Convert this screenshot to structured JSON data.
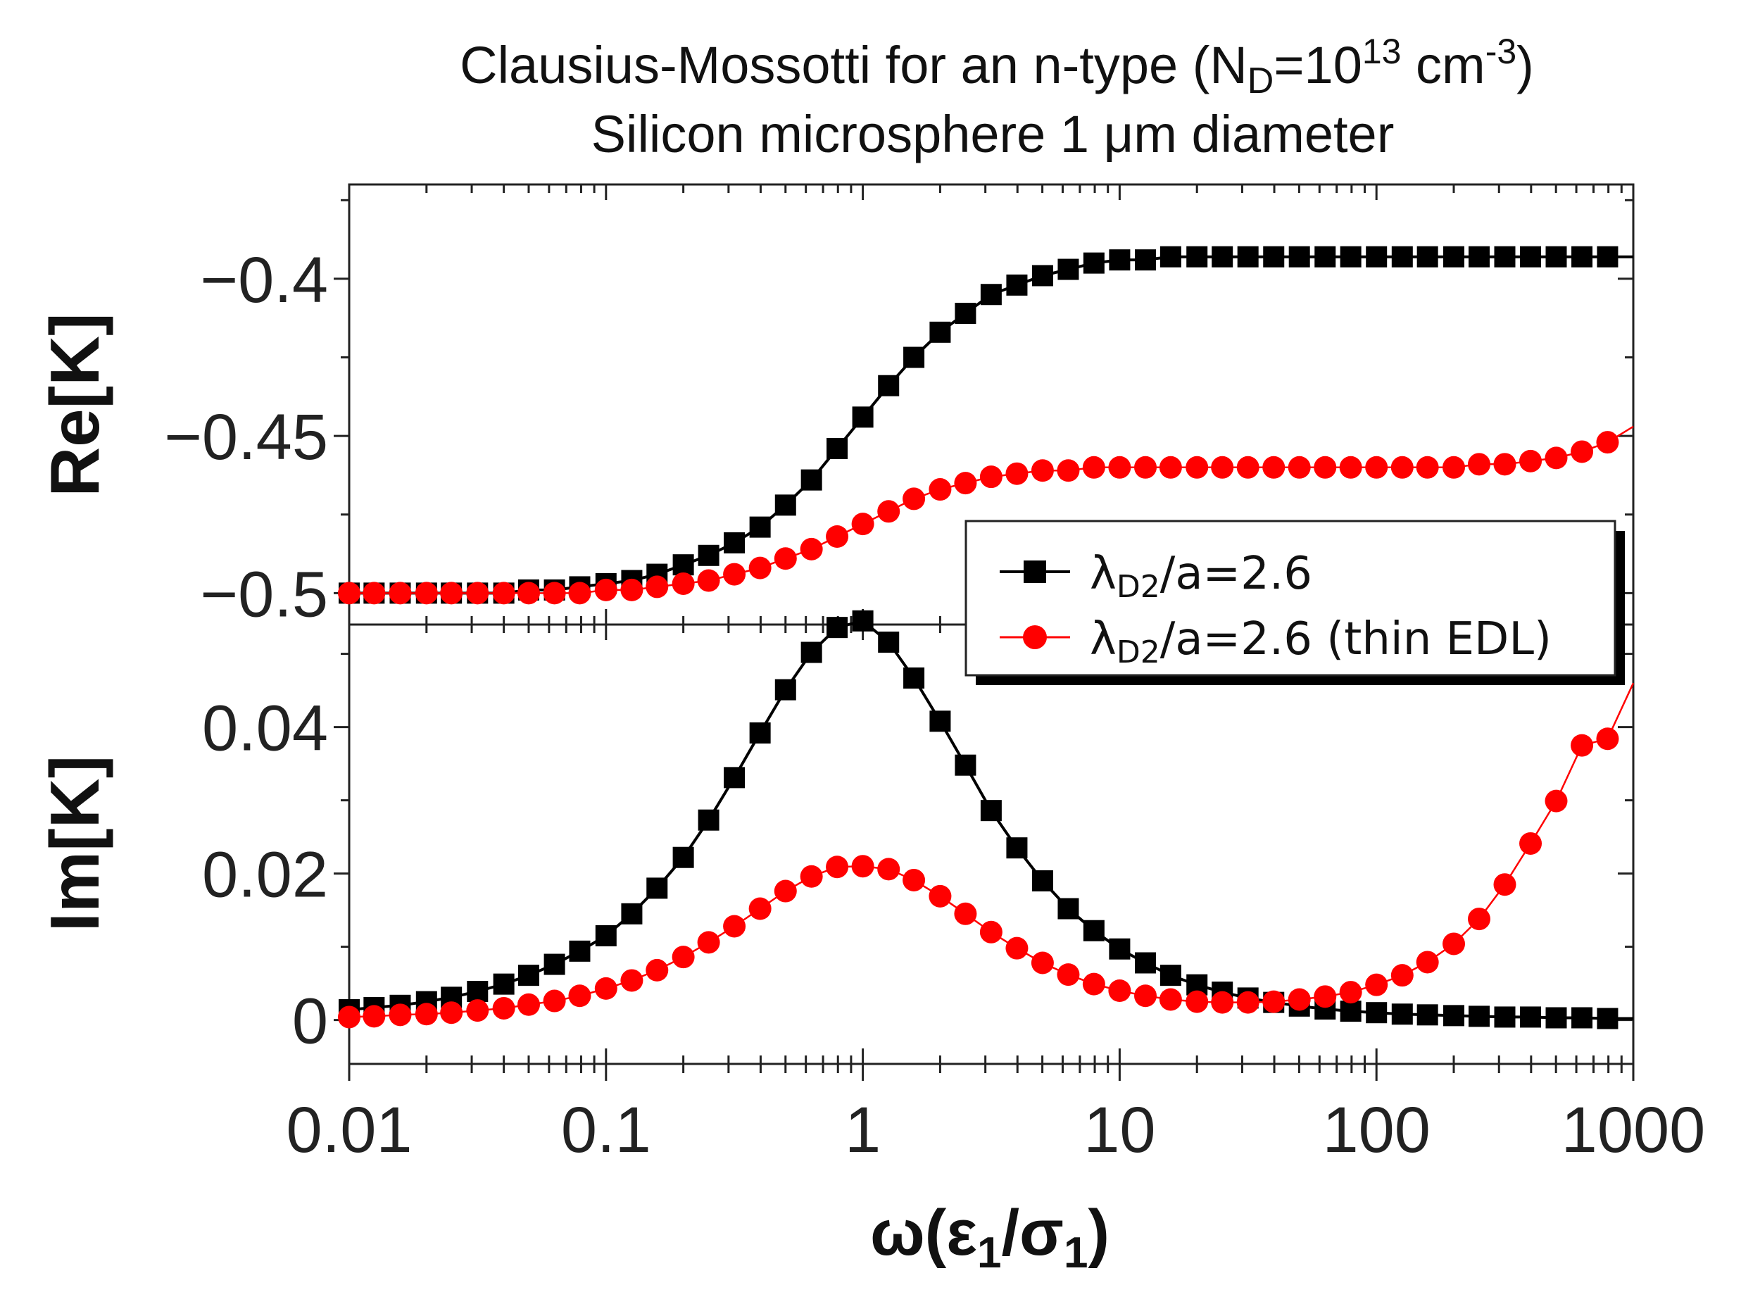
{
  "chart_data": {
    "type": "line",
    "title_line1": {
      "pre": "Clausius-Mossotti for an n-type (N",
      "sub1": "D",
      "mid": "=10",
      "sup1": "13",
      "mid2": " cm",
      "sup2": "-3",
      "post": ")"
    },
    "title_line2": "Silicon microsphere 1 μm diameter",
    "xlabel": {
      "main": "ω(ε",
      "sub1": "1",
      "mid": "/σ",
      "sub2": "1",
      "post": ")"
    },
    "xscale": "log",
    "xlim": [
      0.01,
      1000
    ],
    "xticks": [
      {
        "value": 0.01,
        "label": "0.01"
      },
      {
        "value": 0.1,
        "label": "0.1"
      },
      {
        "value": 1,
        "label": "1"
      },
      {
        "value": 10,
        "label": "10"
      },
      {
        "value": 100,
        "label": "100"
      },
      {
        "value": 1000,
        "label": "1000"
      }
    ],
    "legend": {
      "position": "center-right",
      "entries": [
        {
          "series": "a",
          "pre": "λ",
          "sub": "D2",
          "post": "/a=2.6"
        },
        {
          "series": "b",
          "pre": "λ",
          "sub": "D2",
          "post": "/a=2.6 (thin EDL)"
        }
      ]
    },
    "colors": {
      "series_a": "#000000",
      "series_b": "#ff0000",
      "frame": "#222222"
    },
    "x": [
      0.01,
      0.0125,
      0.0158,
      0.02,
      0.025,
      0.0316,
      0.04,
      0.05,
      0.063,
      0.079,
      0.1,
      0.126,
      0.158,
      0.2,
      0.251,
      0.316,
      0.398,
      0.5,
      0.631,
      0.794,
      1,
      1.26,
      1.58,
      2,
      2.51,
      3.16,
      3.98,
      5.01,
      6.31,
      7.94,
      10,
      12.6,
      15.8,
      20,
      25.1,
      31.6,
      39.8,
      50.1,
      63.1,
      79.4,
      100,
      126,
      158,
      200,
      251,
      316,
      398,
      501,
      631,
      794
    ],
    "panels": [
      {
        "id": "re",
        "ylabel": "Re[K]",
        "ylim": [
          -0.51,
          -0.37
        ],
        "yticks": [
          {
            "value": -0.4,
            "label": "−0.4"
          },
          {
            "value": -0.45,
            "label": "−0.45"
          },
          {
            "value": -0.5,
            "label": "−0.5"
          }
        ],
        "series": [
          {
            "name": "λD2/a=2.6",
            "marker": "square",
            "values": [
              -0.5,
              -0.5,
              -0.5,
              -0.5,
              -0.5,
              -0.5,
              -0.5,
              -0.499,
              -0.499,
              -0.498,
              -0.497,
              -0.496,
              -0.494,
              -0.491,
              -0.488,
              -0.484,
              -0.479,
              -0.472,
              -0.464,
              -0.454,
              -0.444,
              -0.434,
              -0.425,
              -0.417,
              -0.411,
              -0.405,
              -0.402,
              -0.399,
              -0.397,
              -0.395,
              -0.394,
              -0.394,
              -0.393,
              -0.393,
              -0.393,
              -0.393,
              -0.393,
              -0.393,
              -0.393,
              -0.393,
              -0.393,
              -0.393,
              -0.393,
              -0.393,
              -0.393,
              -0.393,
              -0.393,
              -0.393,
              -0.393,
              -0.393
            ],
            "line_end": {
              "x": 1000,
              "y": -0.393
            }
          },
          {
            "name": "λD2/a=2.6 (thin EDL)",
            "marker": "circle",
            "values": [
              -0.5,
              -0.5,
              -0.5,
              -0.5,
              -0.5,
              -0.5,
              -0.5,
              -0.5,
              -0.5,
              -0.5,
              -0.499,
              -0.499,
              -0.498,
              -0.497,
              -0.496,
              -0.494,
              -0.492,
              -0.489,
              -0.486,
              -0.482,
              -0.478,
              -0.474,
              -0.47,
              -0.467,
              -0.465,
              -0.463,
              -0.462,
              -0.461,
              -0.461,
              -0.46,
              -0.46,
              -0.46,
              -0.46,
              -0.46,
              -0.46,
              -0.46,
              -0.46,
              -0.46,
              -0.46,
              -0.46,
              -0.46,
              -0.46,
              -0.46,
              -0.46,
              -0.459,
              -0.459,
              -0.458,
              -0.457,
              -0.455,
              -0.452
            ],
            "line_end": {
              "x": 1000,
              "y": -0.447
            }
          }
        ]
      },
      {
        "id": "im",
        "ylabel": "Im[K]",
        "ylim": [
          -0.006,
          0.054
        ],
        "yticks": [
          {
            "value": 0.04,
            "label": "0.04"
          },
          {
            "value": 0.02,
            "label": "0.02"
          },
          {
            "value": 0,
            "label": "0"
          }
        ],
        "series": [
          {
            "name": "λD2/a=2.6",
            "marker": "square",
            "values": [
              0.0014,
              0.0017,
              0.002,
              0.0025,
              0.0031,
              0.0039,
              0.0049,
              0.0061,
              0.0076,
              0.0094,
              0.0115,
              0.0145,
              0.018,
              0.0222,
              0.0273,
              0.0331,
              0.0392,
              0.0451,
              0.0502,
              0.0536,
              0.0545,
              0.0516,
              0.0467,
              0.0408,
              0.0348,
              0.0286,
              0.0235,
              0.019,
              0.0152,
              0.0122,
              0.0097,
              0.0078,
              0.0061,
              0.0048,
              0.0038,
              0.003,
              0.0024,
              0.0019,
              0.0015,
              0.0012,
              0.001,
              0.0008,
              0.0007,
              0.0006,
              0.0005,
              0.0004,
              0.0004,
              0.0003,
              0.0003,
              0.0002
            ],
            "line_end": {
              "x": 1000,
              "y": 0.0002
            }
          },
          {
            "name": "λD2/a=2.6 (thin EDL)",
            "marker": "circle",
            "values": [
              0.0004,
              0.0005,
              0.0007,
              0.0008,
              0.001,
              0.0013,
              0.0016,
              0.0021,
              0.0026,
              0.0033,
              0.0043,
              0.0054,
              0.0068,
              0.0086,
              0.0106,
              0.0128,
              0.0152,
              0.0176,
              0.0196,
              0.0209,
              0.021,
              0.0206,
              0.0191,
              0.0169,
              0.0145,
              0.012,
              0.0098,
              0.0078,
              0.0062,
              0.0049,
              0.004,
              0.0033,
              0.0028,
              0.0025,
              0.0024,
              0.0024,
              0.0025,
              0.0028,
              0.0032,
              0.0038,
              0.0048,
              0.0061,
              0.0079,
              0.0104,
              0.0138,
              0.0185,
              0.0241,
              0.0299,
              0.0375,
              0.0384
            ],
            "line_end": {
              "x": 1000,
              "y": 0.046
            }
          }
        ]
      }
    ]
  }
}
